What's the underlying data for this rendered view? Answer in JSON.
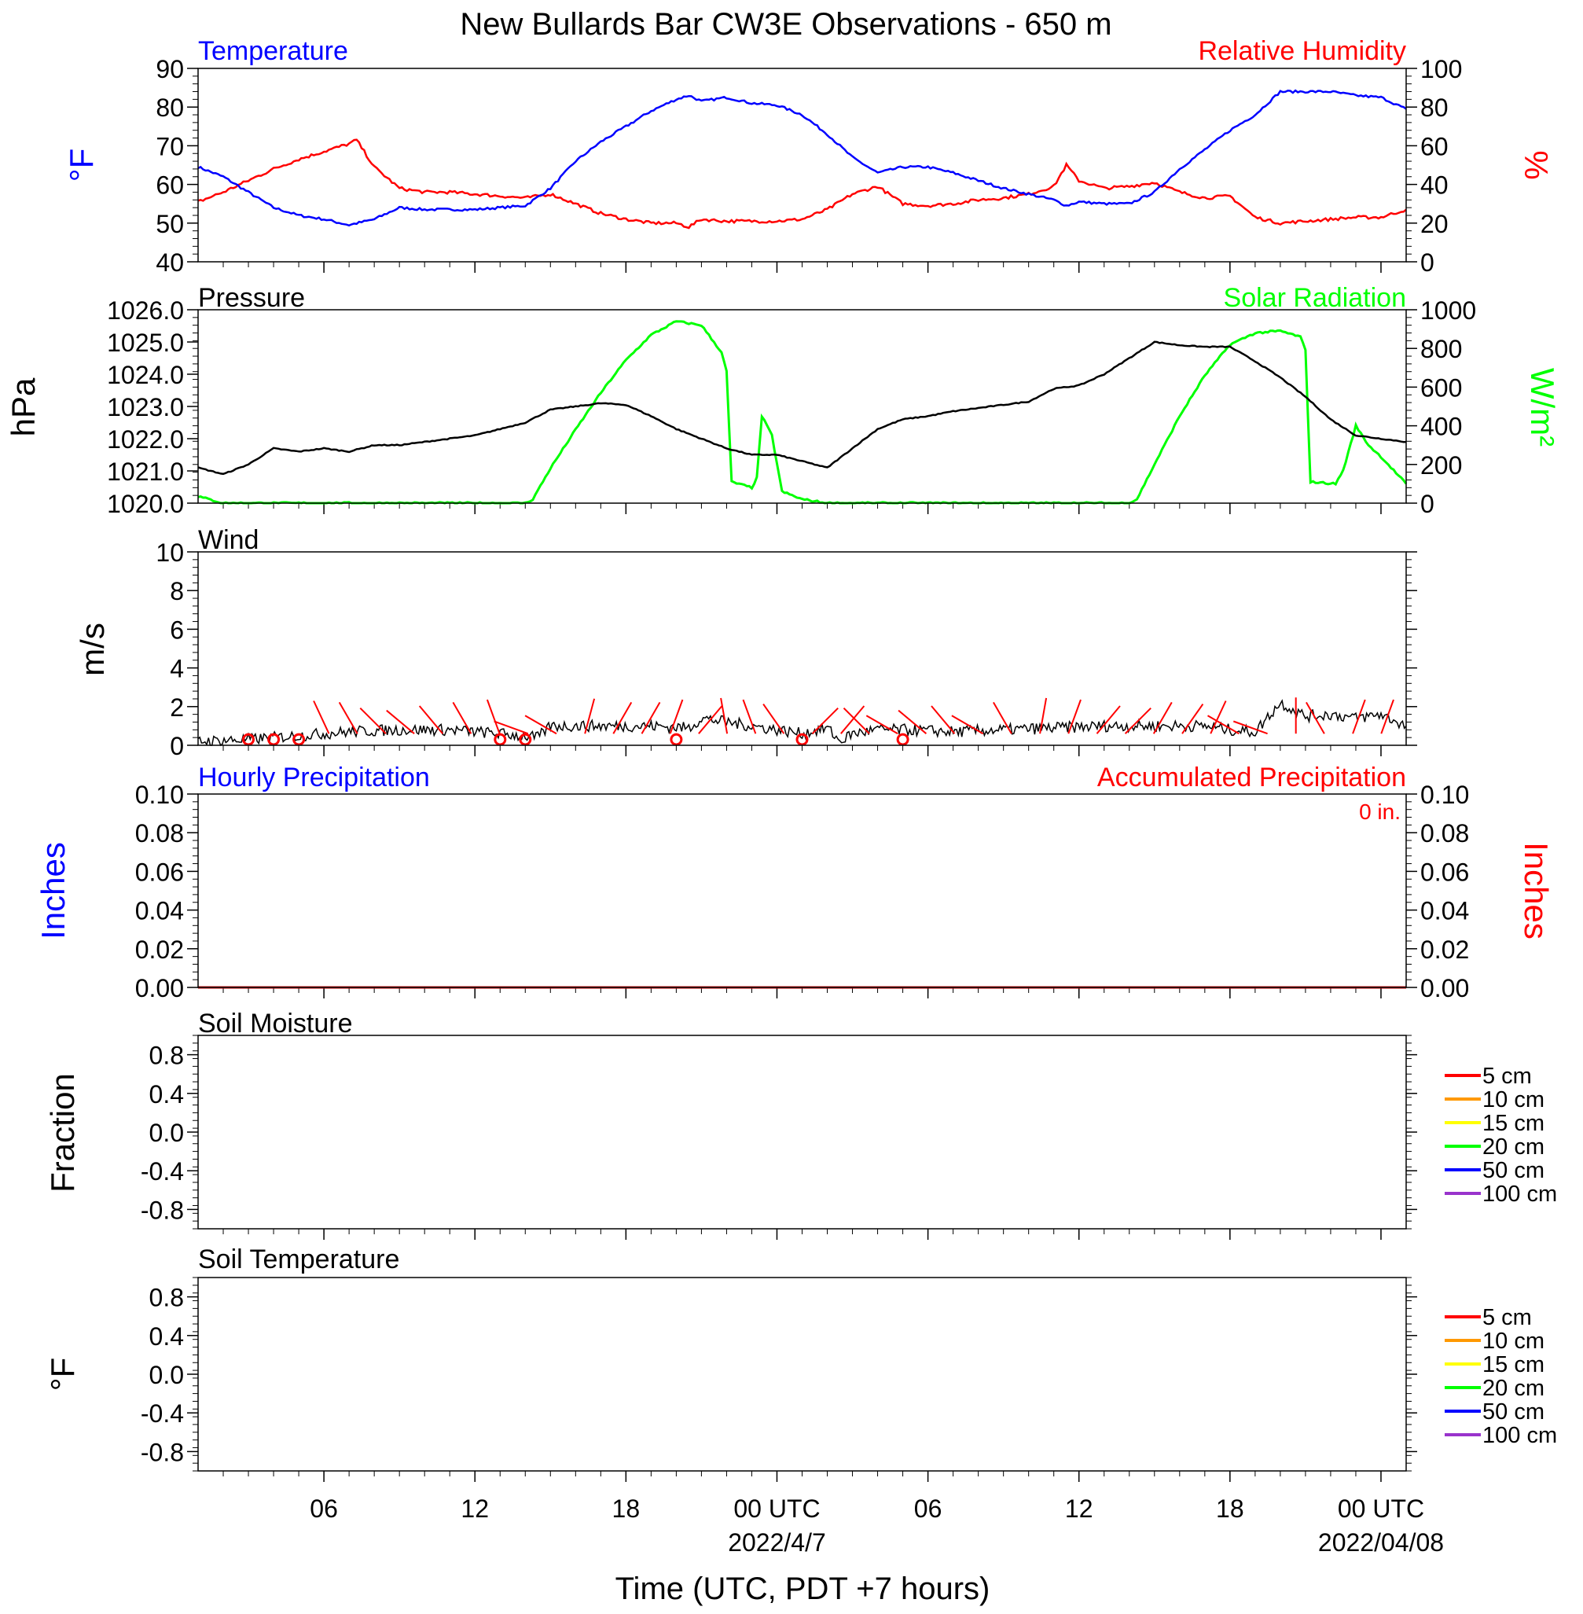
{
  "title": "New Bullards Bar CW3E Observations - 650 m",
  "colors": {
    "temperature": "#0000ff",
    "humidity": "#ff0000",
    "pressure": "#000000",
    "solar": "#00ff00",
    "wind": "#000000",
    "barb": "#ff0000",
    "precip_hourly": "#0000ff",
    "precip_accum": "#ff0000",
    "soil": [
      "#ff0000",
      "#ff9900",
      "#ffff00",
      "#00ff00",
      "#0000ff",
      "#9933cc"
    ]
  },
  "x_axis": {
    "label": "Time (UTC, PDT +7 hours)",
    "range_hours": [
      0,
      48
    ],
    "ticks": [
      {
        "h": 5,
        "label": "06"
      },
      {
        "h": 11,
        "label": "12"
      },
      {
        "h": 17,
        "label": "18"
      },
      {
        "h": 23,
        "label": "00 UTC"
      },
      {
        "h": 29,
        "label": "06"
      },
      {
        "h": 35,
        "label": "12"
      },
      {
        "h": 41,
        "label": "18"
      },
      {
        "h": 47,
        "label": "00 UTC"
      }
    ],
    "date_labels": [
      {
        "h": 23,
        "label": "2022/4/7"
      },
      {
        "h": 47,
        "label": "2022/04/08"
      }
    ]
  },
  "panels": {
    "temp_rh": {
      "left_title": "Temperature",
      "right_title": "Relative Humidity",
      "left_unit": "°F",
      "right_unit": "%",
      "left_ticks": [
        "90",
        "80",
        "70",
        "60",
        "50",
        "40"
      ],
      "right_ticks": [
        "100",
        "80",
        "60",
        "40",
        "20",
        "0"
      ]
    },
    "pressure_solar": {
      "left_title": "Pressure",
      "right_title": "Solar Radiation",
      "left_unit": "hPa",
      "right_unit": "W/m²",
      "left_ticks": [
        "1026.0",
        "1025.0",
        "1024.0",
        "1023.0",
        "1022.0",
        "1021.0",
        "1020.0"
      ],
      "right_ticks": [
        "1000",
        "800",
        "600",
        "400",
        "200",
        "0"
      ]
    },
    "wind": {
      "left_title": "Wind",
      "left_unit": "m/s",
      "left_ticks": [
        "10",
        "8",
        "6",
        "4",
        "2",
        "0"
      ]
    },
    "precip": {
      "left_title": "Hourly Precipitation",
      "right_title": "Accumulated Precipitation",
      "total_label": "0 in.",
      "left_unit": "Inches",
      "right_unit": "Inches",
      "left_ticks": [
        "0.10",
        "0.08",
        "0.06",
        "0.04",
        "0.02",
        "0.00"
      ],
      "right_ticks": [
        "0.10",
        "0.08",
        "0.06",
        "0.04",
        "0.02",
        "0.00"
      ]
    },
    "soil_moisture": {
      "left_title": "Soil Moisture",
      "left_unit": "Fraction",
      "left_ticks": [
        "0.8",
        "0.4",
        "0.0",
        "-0.4",
        "-0.8"
      ],
      "legend": [
        "5 cm",
        "10 cm",
        "15 cm",
        "20 cm",
        "50 cm",
        "100 cm"
      ]
    },
    "soil_temp": {
      "left_title": "Soil Temperature",
      "left_unit": "°F",
      "left_ticks": [
        "0.8",
        "0.4",
        "0.0",
        "-0.4",
        "-0.8"
      ],
      "legend": [
        "5 cm",
        "10 cm",
        "15 cm",
        "20 cm",
        "50 cm",
        "100 cm"
      ]
    }
  },
  "chart_data": [
    {
      "type": "line",
      "title": "Temperature",
      "ylabel": "°F",
      "xlabel": "Time (UTC, PDT +7 hours)",
      "ylim": [
        40,
        90
      ],
      "x": [
        0,
        1,
        2,
        3,
        4,
        5,
        6,
        7,
        8,
        9,
        10,
        11,
        12,
        13,
        14,
        15,
        16,
        17,
        18,
        19,
        19.5,
        20,
        21,
        22,
        23,
        24,
        25,
        26,
        27,
        28,
        29,
        30,
        31,
        32,
        33,
        34,
        34.5,
        35,
        36,
        37,
        38,
        39,
        40,
        41,
        42,
        43,
        44,
        45,
        46,
        47,
        48
      ],
      "values": [
        64.5,
        62,
        58,
        54,
        52,
        51,
        49.5,
        51,
        54,
        53.5,
        53.5,
        53.5,
        54,
        54.5,
        59,
        66,
        71,
        75,
        79,
        82,
        83,
        81.5,
        82.5,
        81,
        80.5,
        78,
        73,
        67,
        63,
        64.5,
        64.5,
        63,
        61,
        59,
        57.5,
        56,
        54.5,
        55.5,
        55,
        55,
        58,
        64,
        69,
        74,
        78,
        84,
        84,
        84,
        83,
        82.5,
        79.5
      ]
    },
    {
      "type": "line",
      "title": "Relative Humidity",
      "ylabel": "%",
      "xlabel": "Time (UTC, PDT +7 hours)",
      "ylim": [
        0,
        100
      ],
      "x": [
        0,
        1,
        2,
        3,
        4,
        5,
        6,
        6.3,
        7,
        8,
        9,
        10,
        11,
        12,
        13,
        14,
        15,
        16,
        17,
        18,
        19,
        19.5,
        20,
        21,
        22,
        23,
        24,
        25,
        26,
        27,
        28,
        29,
        30,
        31,
        32,
        33,
        34,
        34.5,
        35,
        36,
        37,
        38,
        39,
        40,
        41,
        42,
        43,
        44,
        45,
        46,
        47,
        48
      ],
      "values": [
        31,
        36,
        42,
        48,
        53,
        57,
        61,
        63,
        49,
        38,
        36,
        36,
        35,
        34,
        33,
        35,
        30,
        25,
        22,
        20,
        20,
        18,
        22,
        21,
        21,
        21,
        22,
        27,
        35,
        39,
        30,
        29,
        30,
        32,
        33,
        35,
        39,
        50,
        42,
        38,
        39,
        41,
        36,
        33,
        34,
        23,
        20,
        21,
        22,
        23,
        23,
        27
      ]
    },
    {
      "type": "line",
      "title": "Pressure",
      "ylabel": "hPa",
      "xlabel": "Time (UTC, PDT +7 hours)",
      "ylim": [
        1020,
        1026
      ],
      "x": [
        0,
        1,
        2,
        3,
        4,
        5,
        6,
        7,
        8,
        9,
        10,
        11,
        12,
        13,
        14,
        15,
        16,
        17,
        18,
        19,
        20,
        21,
        22,
        23,
        24,
        25,
        26,
        27,
        28,
        29,
        30,
        31,
        32,
        33,
        34,
        35,
        36,
        37,
        38,
        39,
        40,
        41,
        42,
        43,
        44,
        45,
        46,
        47,
        48
      ],
      "values": [
        1021.1,
        1020.9,
        1021.2,
        1021.7,
        1021.6,
        1021.7,
        1021.6,
        1021.8,
        1021.8,
        1021.9,
        1022.0,
        1022.1,
        1022.3,
        1022.5,
        1022.9,
        1023.0,
        1023.1,
        1023.05,
        1022.7,
        1022.3,
        1022.0,
        1021.7,
        1021.5,
        1021.5,
        1021.3,
        1021.1,
        1021.7,
        1022.3,
        1022.6,
        1022.7,
        1022.85,
        1022.95,
        1023.05,
        1023.15,
        1023.55,
        1023.65,
        1024.0,
        1024.5,
        1025.0,
        1024.9,
        1024.85,
        1024.85,
        1024.4,
        1023.9,
        1023.3,
        1022.6,
        1022.1,
        1022.0,
        1021.9
      ]
    },
    {
      "type": "line",
      "title": "Solar Radiation",
      "ylabel": "W/m²",
      "xlabel": "Time (UTC, PDT +7 hours)",
      "ylim": [
        0,
        1000
      ],
      "x": [
        0,
        1,
        13,
        13.3,
        14,
        15,
        16,
        17,
        18,
        19,
        20,
        20.8,
        21,
        21.2,
        22,
        22.2,
        22.4,
        22.8,
        23.2,
        24,
        25,
        37,
        37.3,
        38,
        39,
        40,
        41,
        42,
        43,
        43.8,
        44,
        44.2,
        45.2,
        45.5,
        46,
        46.5,
        47,
        48
      ],
      "values": [
        35,
        0,
        0,
        20,
        180,
        380,
        570,
        740,
        870,
        940,
        920,
        780,
        680,
        110,
        80,
        130,
        450,
        350,
        60,
        20,
        0,
        0,
        20,
        200,
        450,
        660,
        820,
        880,
        890,
        860,
        790,
        110,
        100,
        170,
        400,
        300,
        240,
        100
      ]
    },
    {
      "type": "line",
      "title": "Wind",
      "ylabel": "m/s",
      "xlabel": "Time (UTC, PDT +7 hours)",
      "ylim": [
        0,
        10
      ],
      "x": [
        0,
        2,
        4,
        6,
        8,
        10,
        12,
        13.5,
        14,
        16,
        18,
        19.5,
        20,
        21,
        22,
        23,
        24,
        25,
        25.5,
        26,
        27,
        28,
        30,
        32,
        34,
        36,
        38,
        40,
        41,
        42,
        43,
        44,
        45,
        46,
        47,
        48
      ],
      "values": [
        0.2,
        0.3,
        0.5,
        0.7,
        0.8,
        0.8,
        0.6,
        0.4,
        1.0,
        1.0,
        1.0,
        0.9,
        1.4,
        1.2,
        1.0,
        0.8,
        0.6,
        0.9,
        0.2,
        0.6,
        0.8,
        0.8,
        0.7,
        0.8,
        0.9,
        1.0,
        1.0,
        1.0,
        0.8,
        0.7,
        2.2,
        1.5,
        1.6,
        1.4,
        1.6,
        1.0
      ]
    },
    {
      "type": "line",
      "title": "Hourly Precipitation",
      "ylabel": "Inches",
      "xlabel": "Time (UTC, PDT +7 hours)",
      "ylim": [
        0,
        0.1
      ],
      "x": [
        0,
        48
      ],
      "values": [
        0,
        0
      ]
    },
    {
      "type": "line",
      "title": "Soil Moisture",
      "ylabel": "Fraction",
      "ylim": [
        -1,
        1
      ],
      "series": []
    },
    {
      "type": "line",
      "title": "Soil Temperature",
      "ylabel": "°F",
      "ylim": [
        -1,
        1
      ],
      "series": []
    }
  ]
}
